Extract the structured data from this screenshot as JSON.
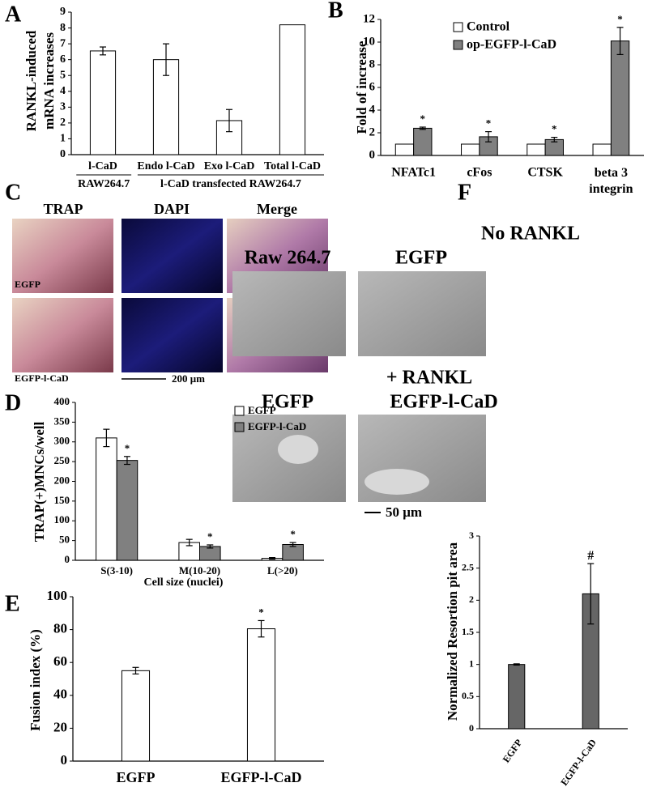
{
  "panels": {
    "letters": [
      "A",
      "B",
      "C",
      "D",
      "E",
      "F"
    ],
    "c_columns": [
      "TRAP",
      "DAPI",
      "Merge"
    ],
    "c_rows": [
      "EGFP",
      "EGFP-l-CaD"
    ],
    "c_scale": "200 μm",
    "f_top_title": "No RANKL",
    "f_top_columns": [
      "Raw 264.7",
      "EGFP"
    ],
    "f_bottom_title": "+ RANKL",
    "f_bottom_columns": [
      "EGFP",
      "EGFP-l-CaD"
    ],
    "f_scale": "50 μm"
  },
  "chart_data": [
    {
      "type": "bar",
      "ylabel": [
        "RANKL-induced",
        "mRNA increases"
      ],
      "categories": [
        "l-CaD",
        "Endo l-CaD",
        "Exo l-CaD",
        "Total l-CaD"
      ],
      "groups": [
        "RAW264.7",
        "l-CaD transfected RAW264.7"
      ],
      "values": [
        6.55,
        6.0,
        2.15,
        8.2
      ],
      "errors": [
        0.25,
        1.0,
        0.7,
        null
      ],
      "color": "#ffffff",
      "ylim": [
        0,
        9
      ],
      "yticks": [
        0,
        1,
        2,
        3,
        4,
        5,
        6,
        7,
        8,
        9
      ]
    },
    {
      "type": "bar",
      "ylabel": "Fold of increase",
      "categories": [
        "NFATc1",
        "cFos",
        "CTSK",
        "beta 3 integrin"
      ],
      "series": [
        {
          "name": "Control",
          "color": "#ffffff",
          "values": [
            1,
            1,
            1,
            1
          ],
          "errors": [
            null,
            null,
            null,
            null
          ]
        },
        {
          "name": "op-EGFP-l-CaD",
          "color": "#808080",
          "values": [
            2.4,
            1.65,
            1.4,
            10.1
          ],
          "errors": [
            0.1,
            0.45,
            0.2,
            1.2
          ],
          "markers": [
            "*",
            "*",
            "*",
            "*"
          ]
        }
      ],
      "ylim": [
        0,
        12
      ],
      "yticks": [
        0,
        2,
        4,
        6,
        8,
        10,
        12
      ]
    },
    {
      "type": "bar",
      "ylabel": "TRAP(+)MNCs/well",
      "xlabel": "Cell size (nuclei)",
      "categories": [
        "S(3-10)",
        "M(10-20)",
        "L(>20)"
      ],
      "series": [
        {
          "name": "EGFP",
          "color": "#ffffff",
          "values": [
            310,
            45,
            5
          ],
          "errors": [
            22,
            8,
            2
          ]
        },
        {
          "name": "EGFP-l-CaD",
          "color": "#808080",
          "values": [
            253,
            35,
            40
          ],
          "errors": [
            10,
            4,
            5
          ],
          "markers": [
            "*",
            "*",
            "*"
          ]
        }
      ],
      "ylim": [
        0,
        400
      ],
      "yticks": [
        0,
        50,
        100,
        150,
        200,
        250,
        300,
        350,
        400
      ]
    },
    {
      "type": "bar",
      "ylabel": "Fusion index (%)",
      "categories": [
        "EGFP",
        "EGFP-l-CaD"
      ],
      "values": [
        55,
        80.5
      ],
      "errors": [
        2,
        5
      ],
      "markers": [
        null,
        "*"
      ],
      "color": "#ffffff",
      "ylim": [
        0,
        100
      ],
      "yticks": [
        0,
        20,
        40,
        60,
        80,
        100
      ]
    },
    {
      "type": "bar",
      "ylabel": "Normalized Resortion pit area",
      "categories": [
        "EGFP",
        "EGFP-l-CaD"
      ],
      "values": [
        1.0,
        2.1
      ],
      "errors": [
        0.01,
        0.47
      ],
      "markers": [
        null,
        "#"
      ],
      "color": "#666666",
      "ylim": [
        0,
        3
      ],
      "yticks": [
        0,
        0.5,
        1,
        1.5,
        2,
        2.5,
        3
      ]
    }
  ]
}
